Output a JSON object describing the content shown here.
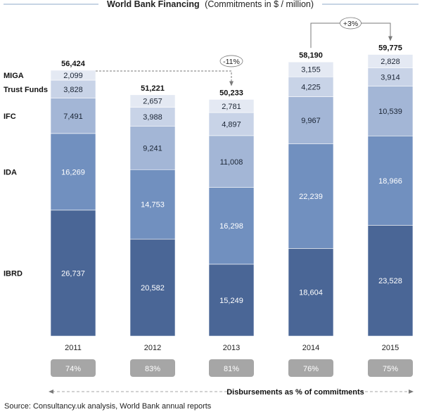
{
  "chart_data": {
    "type": "bar",
    "stacked": true,
    "title": "World Bank Financing",
    "subtitle": "(Commitments in $ / million)",
    "categories": [
      "2011",
      "2012",
      "2013",
      "2014",
      "2015"
    ],
    "series": [
      {
        "name": "IBRD",
        "color": "#4a6696",
        "label_color": "#ffffff",
        "values": [
          26737,
          20582,
          15249,
          18604,
          23528
        ]
      },
      {
        "name": "IDA",
        "color": "#7190bf",
        "label_color": "#ffffff",
        "values": [
          16269,
          14753,
          16298,
          22239,
          18966
        ]
      },
      {
        "name": "IFC",
        "color": "#a3b6d6",
        "label_color": "#1b2535",
        "values": [
          7491,
          9241,
          11008,
          9967,
          10539
        ]
      },
      {
        "name": "Trust Funds",
        "color": "#c8d3e7",
        "label_color": "#1b2535",
        "values": [
          3828,
          3988,
          4897,
          4225,
          3914
        ]
      },
      {
        "name": "MIGA",
        "color": "#e4e9f3",
        "label_color": "#1b2535",
        "values": [
          2099,
          2657,
          2781,
          3155,
          2828
        ]
      }
    ],
    "value_labels": [
      [
        "26,737",
        "20,582",
        "15,249",
        "18,604",
        "23,528"
      ],
      [
        "16,269",
        "14,753",
        "16,298",
        "22,239",
        "18,966"
      ],
      [
        "7,491",
        "9,241",
        "11,008",
        "9,967",
        "10,539"
      ],
      [
        "3,828",
        "3,988",
        "4,897",
        "4,225",
        "3,914"
      ],
      [
        "2,099",
        "2,657",
        "2,781",
        "3,155",
        "2,828"
      ]
    ],
    "totals": [
      56424,
      51221,
      50233,
      58190,
      59775
    ],
    "total_labels": [
      "56,424",
      "51,221",
      "50,233",
      "58,190",
      "59,775"
    ],
    "ylim": [
      0,
      60000
    ],
    "changes": [
      {
        "from": "2011",
        "to": "2013",
        "label": "-11%"
      },
      {
        "from": "2014",
        "to": "2015",
        "label": "+3%"
      }
    ],
    "disbursement_pct": [
      "74%",
      "83%",
      "81%",
      "76%",
      "75%"
    ],
    "disbursement_label": "Disbursements as % of commitments",
    "legend_position": "left, inline with first bar",
    "colors": {
      "header_rule": "#8fa8c9",
      "connector": "#7a7a7a",
      "pct_box": "#a6a6a6",
      "total_bg": "#ffffff"
    }
  },
  "source": "Source: Consultancy.uk analysis, World Bank annual reports"
}
